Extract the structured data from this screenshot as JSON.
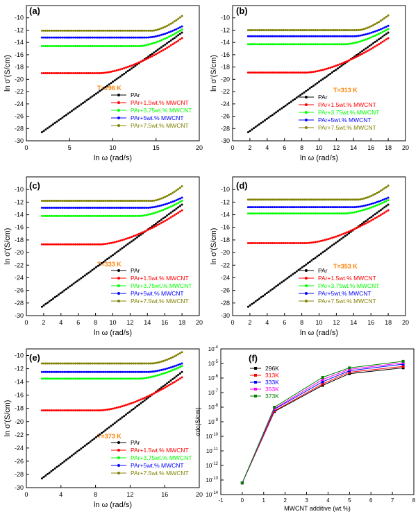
{
  "colors": {
    "PAr": "#000000",
    "PAr+1.5wt.% MWCNT": "#ff0000",
    "PAr+3.75wt.% MWCNT": "#00ff00",
    "PAr+5wt.% MWCNT": "#0000ff",
    "PAr+7.5wt.% MWCNT": "#808000",
    "temp_label": "#ff8000",
    "296K": "#000000",
    "313K": "#ff0000",
    "333K": "#0000ff",
    "353K": "#ff00ff",
    "373K": "#008000"
  },
  "chart_data": [
    {
      "panel": "(a)",
      "type": "line",
      "title": "",
      "annotation": "T=296 K",
      "xlabel": "ln ω (rad/s)",
      "ylabel": "ln σ'(S/cm)",
      "xlim": [
        0,
        20
      ],
      "ylim": [
        -30,
        -8
      ],
      "xticks": [
        "0",
        "5",
        "10",
        "15",
        "20"
      ],
      "yticks": [
        "-30",
        "-28",
        "-26",
        "-24",
        "-22",
        "-20",
        "-18",
        "-16",
        "-14",
        "-12",
        "-10"
      ],
      "legend": [
        "PAr",
        "PAr+1.5wt.% MWCNT",
        "PAr+3.75wt.% MWCNT",
        "PAr+5wt.% MWCNT",
        "PAr+7.5wt.% MWCNT"
      ],
      "series": [
        {
          "name": "PAr",
          "x_range": [
            1.8,
            18
          ],
          "plateau": null,
          "end": -12.4,
          "start": -28.6
        },
        {
          "name": "PAr+1.5wt.% MWCNT",
          "plateau": -19.0,
          "knee": 8.5,
          "end": -13.3
        },
        {
          "name": "PAr+3.75wt.% MWCNT",
          "plateau": -14.6,
          "knee": 13.0,
          "end": -11.9
        },
        {
          "name": "PAr+5wt.% MWCNT",
          "plateau": -13.2,
          "knee": 14.0,
          "end": -11.4
        },
        {
          "name": "PAr+7.5wt.% MWCNT",
          "plateau": -12.1,
          "knee": 14.5,
          "end": -9.7
        }
      ]
    },
    {
      "panel": "(b)",
      "type": "line",
      "title": "",
      "annotation": "T=313 K",
      "xlabel": "ln ω (rad/s)",
      "ylabel": "ln σ'(S/cm)",
      "xlim": [
        0,
        20
      ],
      "ylim": [
        -30,
        -8
      ],
      "xticks": [
        "0",
        "2",
        "4",
        "6",
        "8",
        "10",
        "12",
        "14",
        "16",
        "18",
        "20"
      ],
      "yticks": [
        "-30",
        "-28",
        "-26",
        "-24",
        "-22",
        "-20",
        "-18",
        "-16",
        "-14",
        "-12",
        "-10"
      ],
      "legend": [
        "PAr",
        "PAr+1.5wt.% MWCNT",
        "PAr+3.75wt.% MWCNT",
        "PAr+5wt.% MWCNT",
        "PAr+7.5wt.% MWCNT"
      ],
      "series": [
        {
          "name": "PAr",
          "x_range": [
            1.8,
            18
          ],
          "plateau": null,
          "end": -12.4,
          "start": -28.6
        },
        {
          "name": "PAr+1.5wt.% MWCNT",
          "plateau": -18.9,
          "knee": 8.5,
          "end": -13.3
        },
        {
          "name": "PAr+3.75wt.% MWCNT",
          "plateau": -14.3,
          "knee": 13.0,
          "end": -11.8
        },
        {
          "name": "PAr+5wt.% MWCNT",
          "plateau": -13.0,
          "knee": 14.0,
          "end": -11.3
        },
        {
          "name": "PAr+7.5wt.% MWCNT",
          "plateau": -12.0,
          "knee": 14.5,
          "end": -9.6
        }
      ]
    },
    {
      "panel": "(c)",
      "type": "line",
      "title": "",
      "annotation": "T=333 K",
      "xlabel": "ln ω (rad/s)",
      "ylabel": "ln σ'(S/cm)",
      "xlim": [
        0,
        20
      ],
      "ylim": [
        -30,
        -8
      ],
      "xticks": [
        "0",
        "2",
        "4",
        "6",
        "8",
        "10",
        "12",
        "14",
        "16",
        "18",
        "20"
      ],
      "yticks": [
        "-30",
        "-28",
        "-26",
        "-24",
        "-22",
        "-20",
        "-18",
        "-16",
        "-14",
        "-12",
        "-10"
      ],
      "legend": [
        "PAr",
        "PAr+1.5wt.% MWCNT",
        "PAr+3.75wt.% MWCNT",
        "PAr+5wt.% MWCNT",
        "PAr+7.5wt.% MWCNT"
      ],
      "series": [
        {
          "name": "PAr",
          "x_range": [
            1.8,
            18
          ],
          "plateau": null,
          "end": -12.4,
          "start": -28.6
        },
        {
          "name": "PAr+1.5wt.% MWCNT",
          "plateau": -18.7,
          "knee": 8.5,
          "end": -13.3
        },
        {
          "name": "PAr+3.75wt.% MWCNT",
          "plateau": -14.2,
          "knee": 13.0,
          "end": -11.8
        },
        {
          "name": "PAr+5wt.% MWCNT",
          "plateau": -12.9,
          "knee": 14.0,
          "end": -11.3
        },
        {
          "name": "PAr+7.5wt.% MWCNT",
          "plateau": -11.8,
          "knee": 14.5,
          "end": -9.5
        }
      ]
    },
    {
      "panel": "(d)",
      "type": "line",
      "title": "",
      "annotation": "T=353 K",
      "xlabel": "ln ω (rad/s)",
      "ylabel": "ln σ'(S/cm)",
      "xlim": [
        0,
        20
      ],
      "ylim": [
        -30,
        -8
      ],
      "xticks": [
        "0",
        "2",
        "4",
        "6",
        "8",
        "10",
        "12",
        "14",
        "16",
        "18",
        "20"
      ],
      "yticks": [
        "-30",
        "-28",
        "-26",
        "-24",
        "-22",
        "-20",
        "-18",
        "-16",
        "-14",
        "-12",
        "-10"
      ],
      "legend": [
        "PAr",
        "PAr+1.5wt.% MWCNT",
        "PAr+3.75wt.% MWCNT",
        "PAr+5wt.% MWCNT",
        "PAr+7.5wt.% MWCNT"
      ],
      "series": [
        {
          "name": "PAr",
          "x_range": [
            1.8,
            18
          ],
          "plateau": null,
          "end": -12.4,
          "start": -28.6
        },
        {
          "name": "PAr+1.5wt.% MWCNT",
          "plateau": -18.5,
          "knee": 8.5,
          "end": -13.3
        },
        {
          "name": "PAr+3.75wt.% MWCNT",
          "plateau": -13.8,
          "knee": 13.0,
          "end": -11.7
        },
        {
          "name": "PAr+5wt.% MWCNT",
          "plateau": -12.8,
          "knee": 14.0,
          "end": -11.3
        },
        {
          "name": "PAr+7.5wt.% MWCNT",
          "plateau": -11.6,
          "knee": 14.5,
          "end": -9.4
        }
      ]
    },
    {
      "panel": "(e)",
      "type": "line",
      "title": "",
      "annotation": "T=373 K",
      "xlabel": "ln ω (rad/s)",
      "ylabel": "ln σ'(S/cm)",
      "xlim": [
        0,
        20
      ],
      "ylim": [
        -30,
        -9
      ],
      "xticks": [
        "0",
        "4",
        "8",
        "12",
        "16",
        "20"
      ],
      "yticks": [
        "-30",
        "-28",
        "-26",
        "-24",
        "-22",
        "-20",
        "-18",
        "-16",
        "-14",
        "-12",
        "-10"
      ],
      "legend": [
        "PAr",
        "PAr+1.5wt.% MWCNT",
        "PAr+3.75wt.% MWCNT",
        "PAr+5wt.% MWCNT",
        "PAr+7.5wt.% MWCNT"
      ],
      "series": [
        {
          "name": "PAr",
          "x_range": [
            1.8,
            18
          ],
          "plateau": null,
          "end": -12.5,
          "start": -28.6
        },
        {
          "name": "PAr+1.5wt.% MWCNT",
          "plateau": -18.3,
          "knee": 8.5,
          "end": -13.3
        },
        {
          "name": "PAr+3.75wt.% MWCNT",
          "plateau": -13.5,
          "knee": 13.0,
          "end": -11.6
        },
        {
          "name": "PAr+5wt.% MWCNT",
          "plateau": -12.5,
          "knee": 14.0,
          "end": -11.2
        },
        {
          "name": "PAr+7.5wt.% MWCNT",
          "plateau": -11.2,
          "knee": 14.5,
          "end": -9.5
        }
      ]
    },
    {
      "panel": "(f)",
      "type": "line",
      "scale_y": "log",
      "title": "",
      "xlabel": "MWCNT additive (wt.%)",
      "ylabel": "σdc(S/cm)",
      "xlim": [
        -1,
        8
      ],
      "ylim_exp": [
        -14,
        -4
      ],
      "xticks": [
        "-1",
        "0",
        "1",
        "2",
        "3",
        "4",
        "5",
        "6",
        "7",
        "8"
      ],
      "yticks": [
        "10-14",
        "10-13",
        "10-12",
        "10-11",
        "10-10",
        "10-9",
        "10-8",
        "10-7",
        "10-6",
        "10-5",
        "10-4"
      ],
      "legend": [
        "296K",
        "313K",
        "333K",
        "353K",
        "373K"
      ],
      "x": [
        0,
        1.5,
        3.75,
        5,
        7.5
      ],
      "series": [
        {
          "name": "296K",
          "log10_values": [
            -13.2,
            -8.3,
            -6.5,
            -5.7,
            -5.3
          ]
        },
        {
          "name": "313K",
          "log10_values": [
            -13.2,
            -8.25,
            -6.4,
            -5.6,
            -5.2
          ]
        },
        {
          "name": "333K",
          "log10_values": [
            -13.2,
            -8.15,
            -6.25,
            -5.5,
            -5.05
          ]
        },
        {
          "name": "353K",
          "log10_values": [
            -13.2,
            -8.1,
            -6.1,
            -5.4,
            -4.95
          ]
        },
        {
          "name": "373K",
          "log10_values": [
            -13.2,
            -8.0,
            -5.95,
            -5.3,
            -4.85
          ]
        }
      ]
    }
  ]
}
